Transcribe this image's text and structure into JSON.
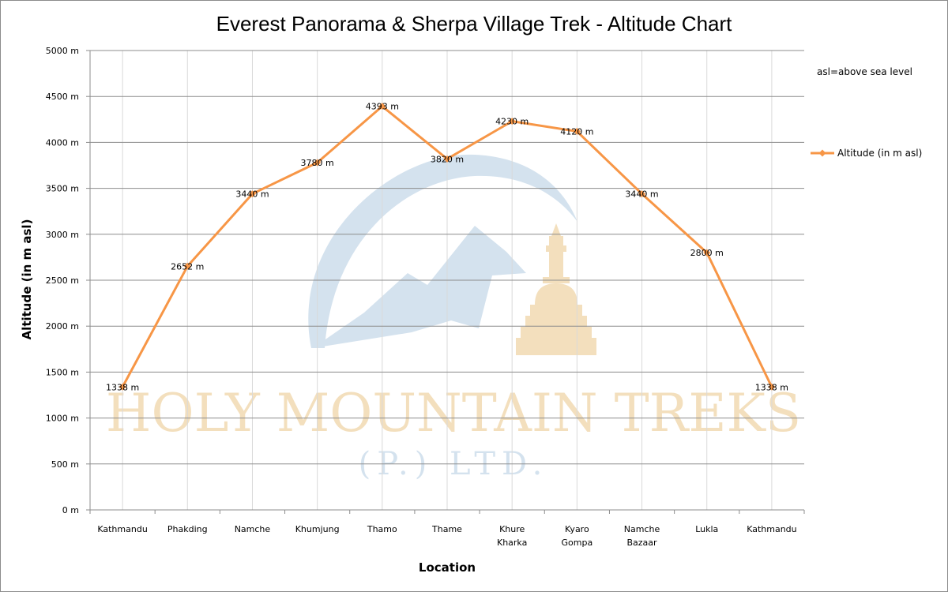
{
  "chart_data": {
    "type": "line",
    "title": "Everest Panorama & Sherpa Village Trek - Altitude Chart",
    "xlabel": "Location",
    "ylabel": "Altitude (in m asl)",
    "ylim": [
      0,
      5000
    ],
    "ytick_step": 500,
    "y_unit_suffix": " m",
    "grid": "horizontal",
    "legend_position": "right",
    "categories": [
      [
        "Kathmandu"
      ],
      [
        "Phakding"
      ],
      [
        "Namche"
      ],
      [
        "Khumjung"
      ],
      [
        "Thamo"
      ],
      [
        "Thame"
      ],
      [
        "Khure",
        "Kharka"
      ],
      [
        "Kyaro",
        "Gompa"
      ],
      [
        "Namche",
        "Bazaar"
      ],
      [
        "Lukla"
      ],
      [
        "Kathmandu"
      ]
    ],
    "series": [
      {
        "name": "Altitude (in  m asl)",
        "color": "#f79646",
        "values": [
          1338,
          2652,
          3440,
          3780,
          4393,
          3820,
          4230,
          4120,
          3440,
          2800,
          1338
        ],
        "data_labels": [
          "1338 m",
          "2652 m",
          "3440 m",
          "3780 m",
          "4393 m",
          "3820 m",
          "4230 m",
          "4120 m",
          "3440 m",
          "2800 m",
          "1338 m"
        ]
      }
    ],
    "annotation": "asl=above sea level"
  },
  "watermark": {
    "line1": "HOLY MOUNTAIN TREKS",
    "line2": "(P.) LTD.",
    "text_color": "#f3dfbd",
    "line2_color": "#d4e2ee",
    "mountain_color": "#d4e2ee",
    "stupa_color": "#f3dfbd"
  },
  "colors": {
    "grid": "#8c8c8c",
    "axis": "#8c8c8c",
    "vgrid": "#d9d9d9"
  }
}
